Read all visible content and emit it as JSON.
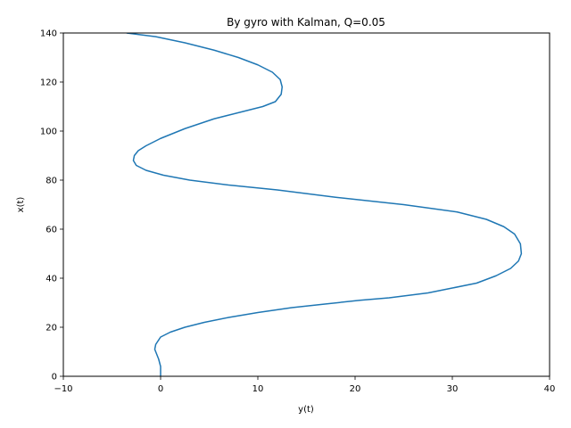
{
  "chart_data": {
    "type": "line",
    "title": "By gyro with Kalman, Q=0.05",
    "xlabel": "y(t)",
    "ylabel": "x(t)",
    "xlim": [
      -10,
      40
    ],
    "ylim": [
      0,
      140
    ],
    "xticks": [
      -10,
      0,
      10,
      20,
      30,
      40
    ],
    "yticks": [
      0,
      20,
      40,
      60,
      80,
      100,
      120,
      140
    ],
    "grid": false,
    "color": "#1f77b4",
    "series": [
      {
        "x": [
          0.0,
          0.0,
          -0.2,
          -0.4,
          -0.6,
          -0.5,
          0.0,
          1.0,
          2.5,
          4.5,
          7.0,
          10.0,
          13.5,
          17.0,
          20.5,
          23.5,
          25.5,
          27.5,
          30.0,
          32.5,
          34.5,
          36.0,
          36.8,
          37.1,
          37.0,
          36.4,
          35.3,
          33.5,
          30.5,
          25.0,
          18.0,
          12.0,
          7.0,
          3.0,
          0.3,
          -1.5,
          -2.5,
          -2.8,
          -2.7,
          -2.3,
          -1.5,
          0.0,
          2.5,
          5.5,
          8.5,
          10.5,
          11.8,
          12.4,
          12.5,
          12.3,
          11.5,
          10.0,
          8.0,
          5.5,
          2.5,
          -0.5,
          -3.5
        ],
        "y": [
          0,
          4,
          7,
          9,
          11,
          13,
          16,
          18,
          20,
          22,
          24,
          26,
          28,
          29.5,
          31,
          32,
          33,
          34,
          36,
          38,
          41,
          44,
          47,
          50,
          54,
          58,
          61,
          64,
          67,
          70,
          73,
          76,
          78,
          80,
          82,
          84,
          86,
          88,
          90,
          92,
          94,
          97,
          101,
          105,
          108,
          110,
          112,
          115,
          118,
          121,
          124,
          127,
          130,
          133,
          136,
          138.5,
          140
        ]
      }
    ]
  }
}
